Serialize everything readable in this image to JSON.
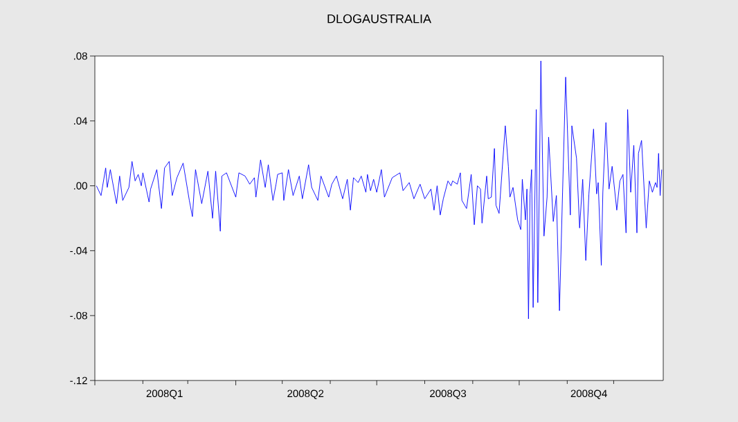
{
  "chart_data": {
    "type": "line",
    "title": "DLOGAUSTRALIA",
    "x": [
      "2008-01-02",
      "2008-01-05",
      "2008-01-08",
      "2008-01-09",
      "2008-01-11",
      "2008-01-15",
      "2008-01-17",
      "2008-01-19",
      "2008-01-23",
      "2008-01-25",
      "2008-01-27",
      "2008-01-29",
      "2008-01-31",
      "2008-02-01",
      "2008-02-05",
      "2008-02-06",
      "2008-02-10",
      "2008-02-13",
      "2008-02-15",
      "2008-02-18",
      "2008-02-20",
      "2008-02-23",
      "2008-02-27",
      "2008-03-02",
      "2008-03-04",
      "2008-03-06",
      "2008-03-10",
      "2008-03-14",
      "2008-03-17",
      "2008-03-19",
      "2008-03-22",
      "2008-03-23",
      "2008-03-26",
      "2008-04-01",
      "2008-04-03",
      "2008-04-07",
      "2008-04-10",
      "2008-04-13",
      "2008-04-14",
      "2008-04-17",
      "2008-04-20",
      "2008-04-22",
      "2008-04-25",
      "2008-04-27",
      "2008-04-28",
      "2008-05-01",
      "2008-05-02",
      "2008-05-05",
      "2008-05-08",
      "2008-05-12",
      "2008-05-14",
      "2008-05-18",
      "2008-05-20",
      "2008-05-24",
      "2008-05-26",
      "2008-05-31",
      "2008-06-02",
      "2008-06-05",
      "2008-06-09",
      "2008-06-12",
      "2008-06-14",
      "2008-06-16",
      "2008-06-19",
      "2008-06-21",
      "2008-06-24",
      "2008-06-25",
      "2008-06-27",
      "2008-06-29",
      "2008-07-01",
      "2008-07-04",
      "2008-07-06",
      "2008-07-11",
      "2008-07-16",
      "2008-07-18",
      "2008-07-22",
      "2008-07-25",
      "2008-07-29",
      "2008-08-01",
      "2008-08-05",
      "2008-08-07",
      "2008-08-09",
      "2008-08-11",
      "2008-08-13",
      "2008-08-16",
      "2008-08-18",
      "2008-08-19",
      "2008-08-22",
      "2008-08-24",
      "2008-08-25",
      "2008-08-28",
      "2008-08-31",
      "2008-09-02",
      "2008-09-04",
      "2008-09-06",
      "2008-09-07",
      "2008-09-10",
      "2008-09-11",
      "2008-09-13",
      "2008-09-15",
      "2008-09-16",
      "2008-09-18",
      "2008-09-20",
      "2008-09-22",
      "2008-09-24",
      "2008-09-25",
      "2008-09-27",
      "2008-09-30",
      "2008-10-02",
      "2008-10-03",
      "2008-10-05",
      "2008-10-06",
      "2008-10-07",
      "2008-10-08",
      "2008-10-09",
      "2008-10-10",
      "2008-10-12",
      "2008-10-13",
      "2008-10-15",
      "2008-10-16",
      "2008-10-17",
      "2008-10-19",
      "2008-10-20",
      "2008-10-23",
      "2008-10-25",
      "2008-10-27",
      "2008-10-29",
      "2008-10-31",
      "2008-11-03",
      "2008-11-04",
      "2008-11-07",
      "2008-11-09",
      "2008-11-11",
      "2008-11-13",
      "2008-11-15",
      "2008-11-18",
      "2008-11-20",
      "2008-11-21",
      "2008-11-23",
      "2008-11-24",
      "2008-11-26",
      "2008-11-28",
      "2008-11-30",
      "2008-12-03",
      "2008-12-05",
      "2008-12-07",
      "2008-12-09",
      "2008-12-10",
      "2008-12-12",
      "2008-12-14",
      "2008-12-16",
      "2008-12-17",
      "2008-12-19",
      "2008-12-22",
      "2008-12-24",
      "2008-12-26",
      "2008-12-28",
      "2008-12-29",
      "2008-12-30",
      "2008-12-31",
      "2009-01-01"
    ],
    "series": [
      {
        "color": "#0000ff",
        "values": [
          0,
          -0.006,
          0.011,
          -0.001,
          0.01,
          -0.011,
          0.006,
          -0.009,
          -0.001,
          0.015,
          0.003,
          0.007,
          0,
          0.008,
          -0.01,
          -0.002,
          0.01,
          -0.014,
          0.011,
          0.015,
          -0.006,
          0.005,
          0.014,
          -0.009,
          -0.019,
          0.01,
          -0.011,
          0.009,
          -0.02,
          0.009,
          -0.028,
          0.006,
          0.008,
          -0.007,
          0.008,
          0.006,
          0.001,
          0.005,
          -0.007,
          0.016,
          -0.001,
          0.013,
          -0.009,
          0.001,
          0.007,
          0.008,
          -0.009,
          0.01,
          -0.006,
          0.006,
          -0.008,
          0.013,
          -0.001,
          -0.009,
          0.006,
          -0.007,
          0.001,
          0.006,
          -0.008,
          0.004,
          -0.015,
          0.005,
          0.002,
          0.006,
          -0.004,
          0.007,
          -0.003,
          0.004,
          -0.004,
          0.01,
          -0.007,
          0.005,
          0.008,
          -0.003,
          0.002,
          -0.008,
          0.001,
          -0.008,
          -0.002,
          -0.015,
          0,
          -0.018,
          -0.008,
          0.003,
          0,
          0.003,
          0.001,
          0.008,
          -0.009,
          -0.014,
          0.007,
          -0.024,
          0,
          -0.002,
          -0.023,
          0.006,
          -0.008,
          -0.007,
          0.023,
          -0.012,
          -0.017,
          0.01,
          0.037,
          0.012,
          -0.007,
          -0.001,
          -0.021,
          -0.027,
          0.004,
          -0.021,
          -0.002,
          -0.082,
          -0.005,
          0.01,
          -0.075,
          0.047,
          -0.072,
          0.077,
          0.019,
          -0.031,
          -0.007,
          0.03,
          -0.022,
          -0.006,
          -0.077,
          -0.004,
          0.067,
          -0.018,
          0.037,
          0.017,
          -0.026,
          0.004,
          -0.046,
          -0.005,
          0.035,
          -0.005,
          0.002,
          -0.049,
          -0.004,
          0.039,
          -0.002,
          0.012,
          -0.015,
          0.003,
          0.007,
          -0.029,
          0.047,
          -0.004,
          0.025,
          -0.029,
          0.02,
          0.028,
          -0.026,
          0.003,
          -0.004,
          0.002,
          -0.001,
          0.02,
          -0.006,
          0.01
        ]
      }
    ],
    "xlim": [
      "2008-01-01",
      "2009-01-02"
    ],
    "xticks": [
      {
        "value": "2008-01-01",
        "label": null
      },
      {
        "value": "2008-02-01",
        "label": null
      },
      {
        "value": "2008-03-01",
        "label": null
      },
      {
        "value": "2008-04-01",
        "label": null
      },
      {
        "value": "2008-05-01",
        "label": null
      },
      {
        "value": "2008-06-01",
        "label": null
      },
      {
        "value": "2008-07-01",
        "label": null
      },
      {
        "value": "2008-08-01",
        "label": null
      },
      {
        "value": "2008-09-01",
        "label": null
      },
      {
        "value": "2008-10-01",
        "label": null
      },
      {
        "value": "2008-11-01",
        "label": null
      },
      {
        "value": "2008-12-01",
        "label": null
      },
      {
        "value": "2008-02-15",
        "label": "2008Q1"
      },
      {
        "value": "2008-05-16",
        "label": "2008Q2"
      },
      {
        "value": "2008-08-16",
        "label": "2008Q3"
      },
      {
        "value": "2008-11-15",
        "label": "2008Q4"
      }
    ],
    "ylim": [
      -0.12,
      0.08
    ],
    "yticks": [
      {
        "value": -0.12,
        "label": "-.12"
      },
      {
        "value": -0.08,
        "label": "-.08"
      },
      {
        "value": -0.04,
        "label": "-.04"
      },
      {
        "value": 0,
        "label": ".00"
      },
      {
        "value": 0.04,
        "label": ".04"
      },
      {
        "value": 0.08,
        "label": ".08"
      }
    ]
  }
}
